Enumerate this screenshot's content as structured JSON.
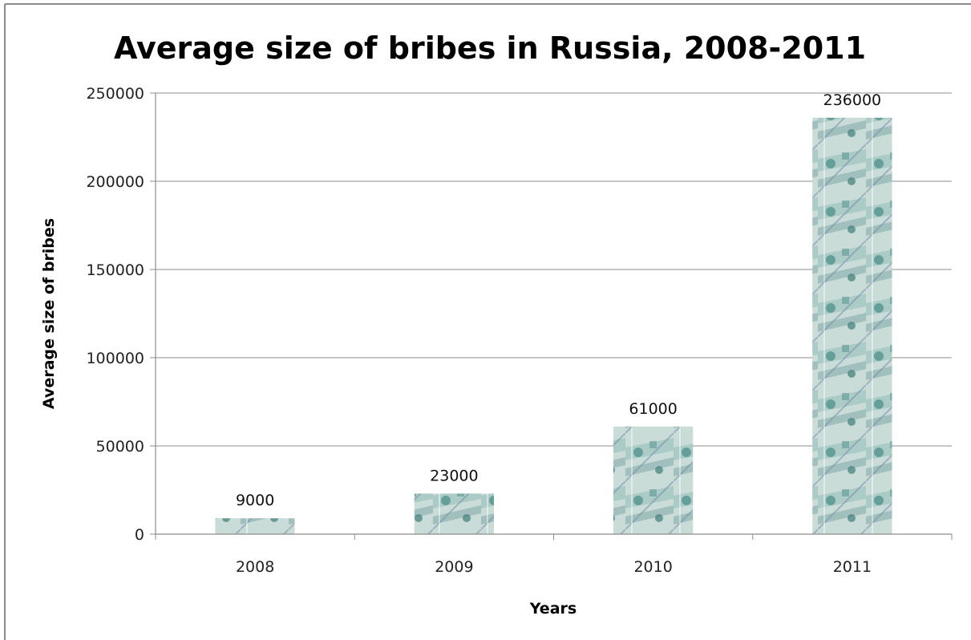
{
  "chart_data": {
    "type": "bar",
    "title": "Average size of bribes in Russia, 2008-2011",
    "xlabel": "Years",
    "ylabel": "Average size of bribes",
    "categories": [
      "2008",
      "2009",
      "2010",
      "2011"
    ],
    "values": [
      9000,
      23000,
      61000,
      236000
    ],
    "data_labels": [
      "9000",
      "23000",
      "61000",
      "236000"
    ],
    "ylim": [
      0,
      250000
    ],
    "y_ticks": [
      0,
      50000,
      100000,
      150000,
      200000,
      250000
    ],
    "y_tick_labels": [
      "0",
      "50000",
      "100000",
      "150000",
      "200000",
      "250000"
    ],
    "grid": true,
    "legend": "none",
    "bar_fill": "banknote texture",
    "colors": {
      "bar_base": "#c9dcd8",
      "bar_accent": "#4f8f8a",
      "bar_shadow": "#6f87a8",
      "gridline": "#8c8c8c",
      "frame": "#8c8c8c"
    }
  }
}
